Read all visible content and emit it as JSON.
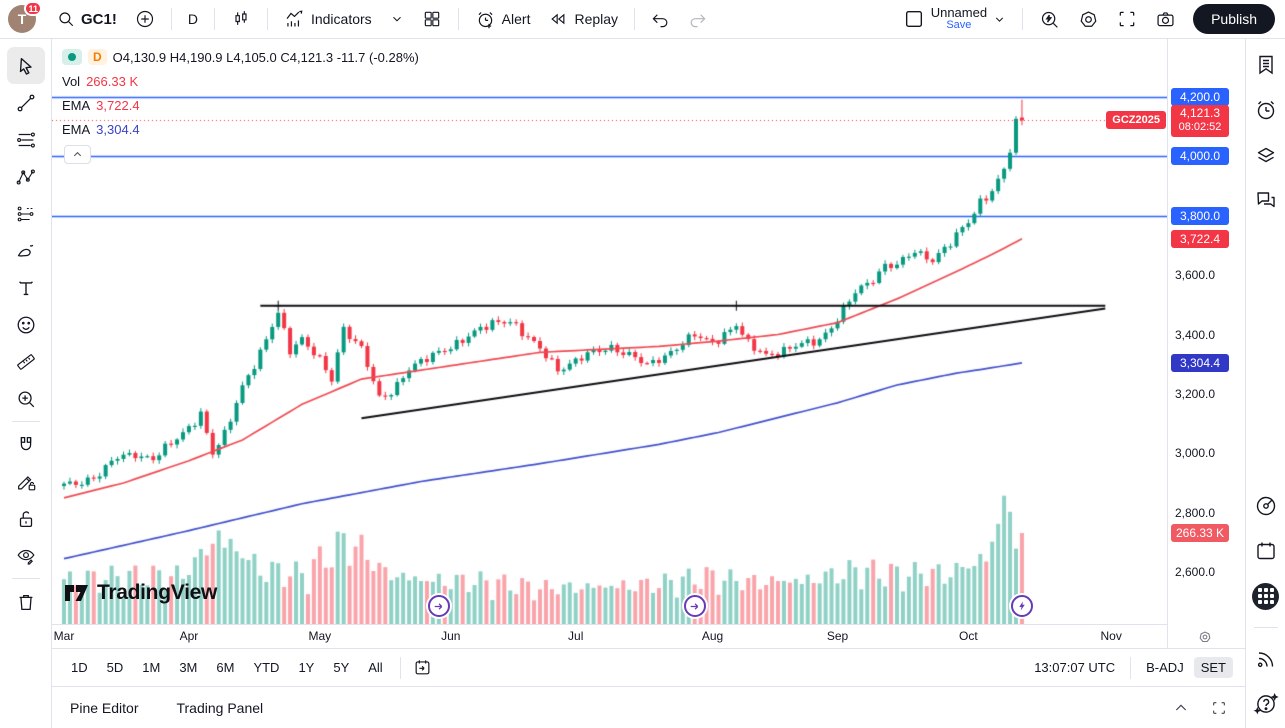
{
  "header": {
    "avatar_initial": "T",
    "notification_count": "11",
    "symbol": "GC1!",
    "interval": "D",
    "indicators_label": "Indicators",
    "alert_label": "Alert",
    "replay_label": "Replay",
    "layout_name": "Unnamed",
    "save_label": "Save",
    "publish_label": "Publish",
    "icons": [
      "search",
      "plus",
      "candlestick-chart",
      "indicators",
      "chevron-down",
      "grid-layout",
      "alarm-plus",
      "replay-rewind",
      "undo",
      "redo",
      "layout-square",
      "quick-search",
      "settings-gear",
      "fullscreen",
      "camera"
    ]
  },
  "left_toolbar": {
    "items": [
      "cursor",
      "trend-line",
      "horizontal-lines",
      "xabcd-pattern",
      "projection",
      "brush",
      "text",
      "emoji",
      "ruler",
      "zoom-in",
      "magnet",
      "draw-edit",
      "lock",
      "hide-drawings",
      "trash"
    ]
  },
  "right_sidebar": {
    "items": [
      "watchlist",
      "alerts-clock",
      "layers",
      "chat",
      "screener-radar",
      "calendar",
      "apps-grid",
      "data-feed",
      "help"
    ]
  },
  "legend": {
    "interval_badge": "D",
    "ohlc": "O4,130.9 H4,190.9 L4,105.0 C4,121.3 -11.7 (-0.28%)",
    "vol_label": "Vol",
    "vol_value": "266.33 K",
    "ema1_label": "EMA",
    "ema1_value": "3,722.4",
    "ema2_label": "EMA",
    "ema2_value": "3,304.4"
  },
  "watermark": "TradingView",
  "bottom_toolbar": {
    "ranges": [
      "1D",
      "5D",
      "1M",
      "3M",
      "6M",
      "YTD",
      "1Y",
      "5Y",
      "All"
    ],
    "clock": "13:07:07 UTC",
    "adjust": "B-ADJ",
    "settings": "SET"
  },
  "status_bar": {
    "pine_editor": "Pine Editor",
    "trading_panel": "Trading Panel"
  },
  "chart_data": {
    "type": "candlestick",
    "symbol": "GC1!",
    "interval": "daily",
    "ylim": [
      2550,
      4290
    ],
    "grid": false,
    "candle_up": "#089981",
    "candle_down": "#f23645",
    "x_months": [
      {
        "label": "Mar",
        "day": 0
      },
      {
        "label": "Apr",
        "day": 21
      },
      {
        "label": "May",
        "day": 43
      },
      {
        "label": "Jun",
        "day": 65
      },
      {
        "label": "Jul",
        "day": 86
      },
      {
        "label": "Aug",
        "day": 109
      },
      {
        "label": "Sep",
        "day": 130
      },
      {
        "label": "Oct",
        "day": 152
      },
      {
        "label": "Nov",
        "day": 176
      }
    ],
    "anchors": [
      [
        0,
        2890
      ],
      [
        3,
        2905
      ],
      [
        6,
        2930
      ],
      [
        9,
        2985
      ],
      [
        12,
        3000
      ],
      [
        15,
        2980
      ],
      [
        18,
        3030
      ],
      [
        21,
        3090
      ],
      [
        23,
        3135
      ],
      [
        25,
        2995
      ],
      [
        27,
        3060
      ],
      [
        30,
        3230
      ],
      [
        33,
        3335
      ],
      [
        36,
        3470
      ],
      [
        38,
        3350
      ],
      [
        40,
        3390
      ],
      [
        43,
        3310
      ],
      [
        45,
        3245
      ],
      [
        47,
        3425
      ],
      [
        50,
        3355
      ],
      [
        53,
        3180
      ],
      [
        55,
        3205
      ],
      [
        58,
        3290
      ],
      [
        61,
        3315
      ],
      [
        64,
        3350
      ],
      [
        67,
        3385
      ],
      [
        70,
        3415
      ],
      [
        73,
        3445
      ],
      [
        75,
        3450
      ],
      [
        78,
        3385
      ],
      [
        81,
        3330
      ],
      [
        83,
        3285
      ],
      [
        86,
        3310
      ],
      [
        89,
        3340
      ],
      [
        92,
        3360
      ],
      [
        95,
        3330
      ],
      [
        98,
        3295
      ],
      [
        100,
        3320
      ],
      [
        103,
        3355
      ],
      [
        106,
        3395
      ],
      [
        109,
        3375
      ],
      [
        113,
        3430
      ],
      [
        115,
        3365
      ],
      [
        118,
        3335
      ],
      [
        121,
        3345
      ],
      [
        124,
        3365
      ],
      [
        127,
        3385
      ],
      [
        130,
        3450
      ],
      [
        133,
        3540
      ],
      [
        136,
        3590
      ],
      [
        138,
        3635
      ],
      [
        140,
        3630
      ],
      [
        143,
        3680
      ],
      [
        146,
        3655
      ],
      [
        149,
        3705
      ],
      [
        152,
        3780
      ],
      [
        154,
        3850
      ],
      [
        156,
        3885
      ],
      [
        158,
        3950
      ],
      [
        159,
        4020
      ],
      [
        160,
        4110
      ],
      [
        161,
        4121.3
      ]
    ],
    "last_candle": {
      "o": 4130.9,
      "h": 4190.9,
      "l": 4105.0,
      "c": 4121.3
    },
    "ema_fast": {
      "color": "#ef4a52",
      "value": 3722.4,
      "points": [
        [
          0,
          2850
        ],
        [
          10,
          2900
        ],
        [
          21,
          2975
        ],
        [
          30,
          3045
        ],
        [
          40,
          3165
        ],
        [
          50,
          3250
        ],
        [
          60,
          3280
        ],
        [
          70,
          3310
        ],
        [
          80,
          3340
        ],
        [
          90,
          3350
        ],
        [
          100,
          3360
        ],
        [
          110,
          3378
        ],
        [
          120,
          3400
        ],
        [
          130,
          3440
        ],
        [
          140,
          3520
        ],
        [
          150,
          3612
        ],
        [
          156,
          3670
        ],
        [
          161,
          3722.4
        ]
      ]
    },
    "ema_slow": {
      "color": "#4150cc",
      "value": 3304.4,
      "points": [
        [
          0,
          2645
        ],
        [
          20,
          2735
        ],
        [
          40,
          2830
        ],
        [
          60,
          2905
        ],
        [
          80,
          2965
        ],
        [
          100,
          3030
        ],
        [
          110,
          3070
        ],
        [
          120,
          3120
        ],
        [
          130,
          3170
        ],
        [
          140,
          3230
        ],
        [
          150,
          3270
        ],
        [
          155,
          3285
        ],
        [
          161,
          3304.4
        ]
      ]
    },
    "volume": {
      "up_color": "rgba(8,153,129,0.45)",
      "down_color": "rgba(242,54,69,0.45)",
      "last": 266330,
      "profile": [
        [
          0,
          1
        ],
        [
          10,
          1.05
        ],
        [
          20,
          1.1
        ],
        [
          26,
          2.0
        ],
        [
          33,
          1.25
        ],
        [
          40,
          1.1
        ],
        [
          48,
          1.9
        ],
        [
          54,
          1.15
        ],
        [
          60,
          1.0
        ],
        [
          70,
          0.95
        ],
        [
          80,
          0.8
        ],
        [
          90,
          0.85
        ],
        [
          100,
          0.9
        ],
        [
          108,
          1.05
        ],
        [
          115,
          0.95
        ],
        [
          125,
          1.0
        ],
        [
          133,
          1.2
        ],
        [
          140,
          1.1
        ],
        [
          148,
          1.15
        ],
        [
          152,
          1.3
        ],
        [
          156,
          1.7
        ],
        [
          158,
          3.2
        ],
        [
          160,
          1.5
        ],
        [
          161,
          1.0
        ]
      ]
    },
    "horizontal_lines": [
      {
        "price": 4200,
        "label": "4,200.0"
      },
      {
        "price": 4000,
        "label": "4,000.0"
      },
      {
        "price": 3800,
        "label": "3,800.0"
      }
    ],
    "horizontal_line_color": "#2962ff",
    "trend_lines": [
      {
        "from": [
          33,
          3497
        ],
        "to": [
          175,
          3497
        ],
        "anchor_days": [
          36,
          113
        ]
      },
      {
        "from": [
          50,
          3118
        ],
        "to": [
          175,
          3488
        ],
        "anchor_days": []
      }
    ],
    "trend_line_color": "#0f0f14",
    "markers": [
      {
        "day": 63,
        "type": "rollover-arrow"
      },
      {
        "day": 106,
        "type": "rollover-arrow"
      },
      {
        "day": 161,
        "type": "lightning"
      }
    ],
    "last_price": {
      "value": 4121.3,
      "label": "4,121.3",
      "countdown": "08:02:52",
      "contract": "GCZ2025",
      "color": "#f23645"
    },
    "price_ticks": [
      {
        "price": 3600,
        "label": "3,600.0"
      },
      {
        "price": 3400,
        "label": "3,400.0"
      },
      {
        "price": 3200,
        "label": "3,200.0"
      },
      {
        "price": 3000,
        "label": "3,000.0"
      },
      {
        "price": 2800,
        "label": "2,800.0"
      },
      {
        "price": 2600,
        "label": "2,600.0"
      }
    ],
    "ema_badges": [
      {
        "price": 3722.4,
        "label": "3,722.4",
        "color": "#f23645"
      },
      {
        "price": 3304.4,
        "label": "3,304.4",
        "color": "#3138c5"
      }
    ],
    "volume_badge": {
      "label": "266.33 K",
      "color": "#ef5a63"
    }
  }
}
